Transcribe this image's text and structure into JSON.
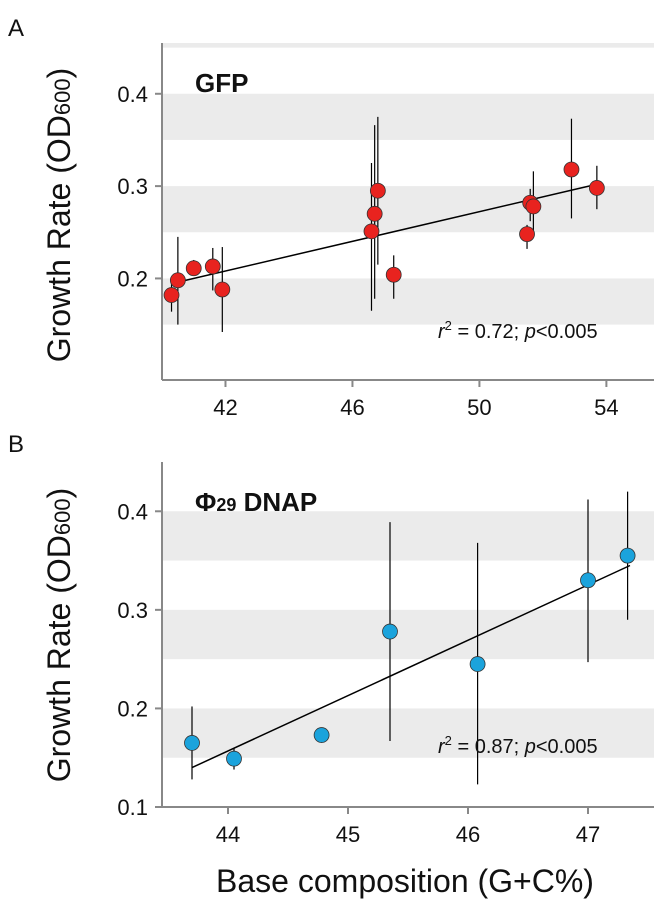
{
  "colors": {
    "band": "#ebebeb",
    "gfp_point": "#e8231f",
    "dnap_point": "#1ba3dc",
    "line": "#000000"
  },
  "shared_xlabel": "Base composition (G+C%)",
  "chart_data": [
    {
      "type": "scatter",
      "panel_label": "A",
      "title": "GFP",
      "ylabel": "Growth Rate (OD600)",
      "ylabel_main": "Growth Rate (OD",
      "ylabel_sub": "600",
      "ylabel_close": ")",
      "xlabel": "",
      "xlim": [
        40,
        55.5
      ],
      "ylim": [
        0.09,
        0.455
      ],
      "xticks": [
        42,
        46,
        50,
        54
      ],
      "yticks": [
        0.2,
        0.3,
        0.4
      ],
      "grid": "alternating horizontal bands",
      "stats": {
        "r_symbol": "r",
        "r_exp": "2",
        "r_rest": " = 0.72; ",
        "p_symbol": "p",
        "p_rest": "<0.005"
      },
      "fit": {
        "x": [
          40.5,
          53.7
        ],
        "y": [
          0.196,
          0.302
        ]
      },
      "points": [
        {
          "x": 40.3,
          "y": 0.182,
          "ylow": 0.164,
          "yhigh": 0.2
        },
        {
          "x": 40.5,
          "y": 0.198,
          "ylow": 0.15,
          "yhigh": 0.245
        },
        {
          "x": 41.0,
          "y": 0.211,
          "ylow": 0.203,
          "yhigh": 0.22
        },
        {
          "x": 41.6,
          "y": 0.213,
          "ylow": 0.187,
          "yhigh": 0.233
        },
        {
          "x": 41.9,
          "y": 0.188,
          "ylow": 0.142,
          "yhigh": 0.234
        },
        {
          "x": 46.6,
          "y": 0.251,
          "ylow": 0.165,
          "yhigh": 0.325
        },
        {
          "x": 46.7,
          "y": 0.27,
          "ylow": 0.178,
          "yhigh": 0.366
        },
        {
          "x": 46.8,
          "y": 0.295,
          "ylow": 0.215,
          "yhigh": 0.375
        },
        {
          "x": 47.3,
          "y": 0.204,
          "ylow": 0.178,
          "yhigh": 0.225
        },
        {
          "x": 51.5,
          "y": 0.248,
          "ylow": 0.232,
          "yhigh": 0.258
        },
        {
          "x": 51.6,
          "y": 0.282,
          "ylow": 0.262,
          "yhigh": 0.297
        },
        {
          "x": 51.7,
          "y": 0.278,
          "ylow": 0.245,
          "yhigh": 0.316
        },
        {
          "x": 52.9,
          "y": 0.318,
          "ylow": 0.265,
          "yhigh": 0.373
        },
        {
          "x": 53.7,
          "y": 0.298,
          "ylow": 0.275,
          "yhigh": 0.322
        }
      ]
    },
    {
      "type": "scatter",
      "panel_label": "B",
      "title": "Φ29 DNAP",
      "title_main": "Φ",
      "title_sub": "29",
      "title_rest": " DNAP",
      "ylabel": "Growth Rate (OD600)",
      "ylabel_main": "Growth Rate (OD",
      "ylabel_sub": "600",
      "ylabel_close": ")",
      "xlabel": "Base composition (G+C%)",
      "xlim": [
        43.45,
        47.55
      ],
      "ylim": [
        0.1,
        0.45
      ],
      "xticks": [
        44,
        45,
        46,
        47
      ],
      "yticks": [
        0.1,
        0.2,
        0.3,
        0.4
      ],
      "grid": "alternating horizontal bands",
      "stats": {
        "r_symbol": "r",
        "r_exp": "2",
        "r_rest": " = 0.87; ",
        "p_symbol": "p",
        "p_rest": "<0.005"
      },
      "fit": {
        "x": [
          43.7,
          47.35
        ],
        "y": [
          0.14,
          0.345
        ]
      },
      "points": [
        {
          "x": 43.7,
          "y": 0.165,
          "ylow": 0.128,
          "yhigh": 0.202
        },
        {
          "x": 44.05,
          "y": 0.149,
          "ylow": 0.138,
          "yhigh": 0.16
        },
        {
          "x": 44.78,
          "y": 0.173,
          "ylow": 0.173,
          "yhigh": 0.173
        },
        {
          "x": 45.35,
          "y": 0.278,
          "ylow": 0.167,
          "yhigh": 0.389
        },
        {
          "x": 46.08,
          "y": 0.245,
          "ylow": 0.123,
          "yhigh": 0.368
        },
        {
          "x": 47.0,
          "y": 0.33,
          "ylow": 0.247,
          "yhigh": 0.412
        },
        {
          "x": 47.33,
          "y": 0.355,
          "ylow": 0.29,
          "yhigh": 0.42
        }
      ]
    }
  ]
}
